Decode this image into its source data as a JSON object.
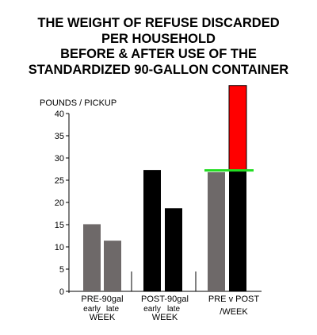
{
  "title_lines": [
    "THE WEIGHT OF REFUSE DISCARDED",
    "PER HOUSEHOLD",
    "BEFORE & AFTER USE OF THE",
    "STANDARDIZED 90-GALLON CONTAINER"
  ],
  "chart_data": {
    "type": "bar",
    "ylabel": "POUNDS / PICKUP",
    "ylim": [
      0,
      40
    ],
    "yticks": [
      "0",
      "5",
      "10",
      "15",
      "20",
      "25",
      "30",
      "35",
      "40"
    ],
    "grid": false,
    "groups": [
      {
        "label": "PRE-90gal",
        "sub_labels": [
          "early",
          "late"
        ],
        "unit_label": "WEEK",
        "bars": [
          {
            "label": "early",
            "value": 15.1,
            "color": "#6e6969"
          },
          {
            "label": "late",
            "value": 11.4,
            "color": "#6e6969"
          }
        ]
      },
      {
        "label": "POST-90gal",
        "sub_labels": [
          "early",
          "late"
        ],
        "unit_label": "WEEK",
        "bars": [
          {
            "label": "early",
            "value": 27.3,
            "color": "#000000"
          },
          {
            "label": "late",
            "value": 18.7,
            "color": "#000000"
          }
        ]
      },
      {
        "label": "PRE v POST",
        "sub_labels": [],
        "unit_label": "/WEEK",
        "bars": [
          {
            "label": "PRE",
            "value": 26.8,
            "color": "#6e6969"
          },
          {
            "label": "POST",
            "value": 27.1,
            "overlay_top": 46.3,
            "color": "#000000",
            "overlay_color": "#ff0000"
          }
        ]
      }
    ],
    "reference_line": {
      "value": 27.2,
      "color": "#22dd22"
    }
  }
}
